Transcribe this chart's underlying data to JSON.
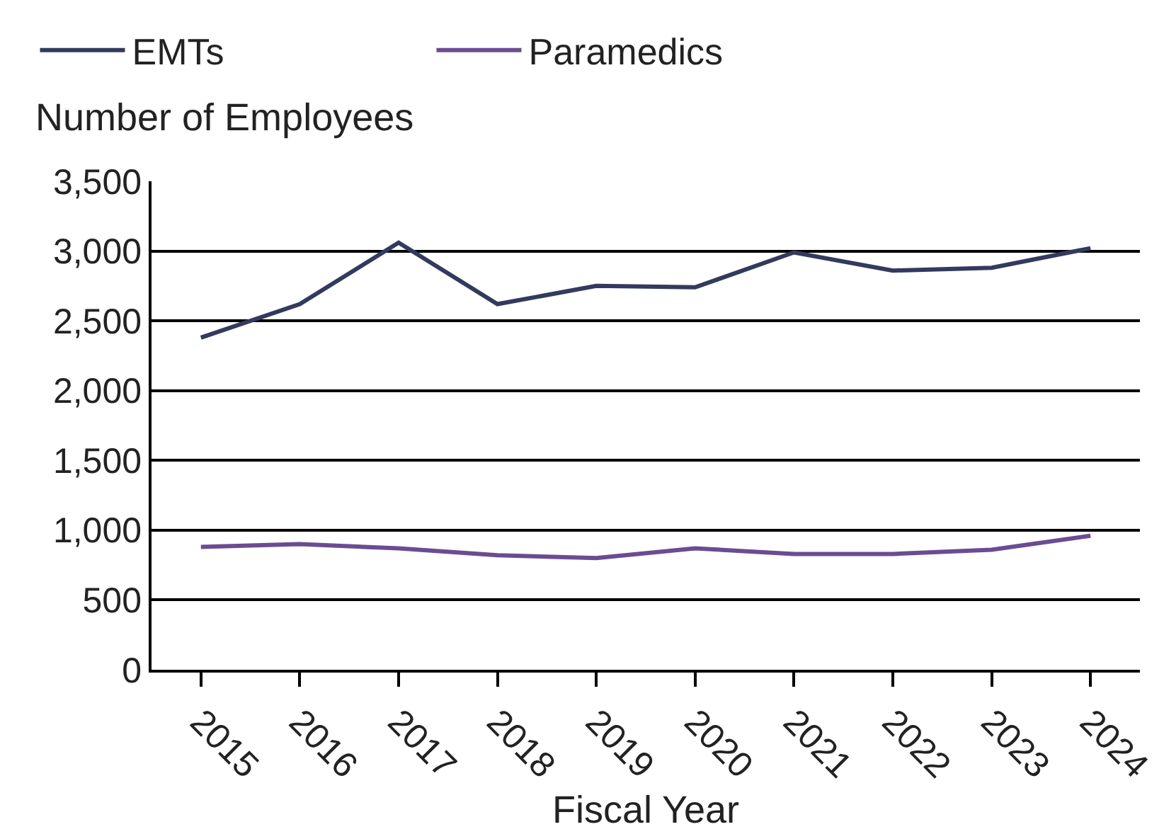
{
  "chart_data": {
    "type": "line",
    "xlabel": "Fiscal Year",
    "ylabel": "Number of Employees",
    "categories": [
      "2015",
      "2016",
      "2017",
      "2018",
      "2019",
      "2020",
      "2021",
      "2022",
      "2023",
      "2024"
    ],
    "series": [
      {
        "name": "EMTs",
        "color": "#323a5e",
        "values": [
          2380,
          2620,
          3060,
          2620,
          2750,
          2740,
          2990,
          2860,
          2880,
          3020
        ]
      },
      {
        "name": "Paramedics",
        "color": "#6b4c92",
        "values": [
          880,
          900,
          870,
          820,
          800,
          870,
          830,
          830,
          860,
          960
        ]
      }
    ],
    "ylim": [
      0,
      3500
    ],
    "yticks": [
      0,
      500,
      {
        "value": 1000,
        "label": "1,000"
      },
      {
        "value": 1500,
        "label": "1,500"
      },
      {
        "value": 2000,
        "label": "2,000"
      },
      {
        "value": 2500,
        "label": "2,500"
      },
      {
        "value": 3000,
        "label": "3,000"
      },
      {
        "value": 3500,
        "label": "3,500"
      }
    ],
    "grid": "y",
    "legend": "top left",
    "marker": "none",
    "line_style": "solid"
  }
}
